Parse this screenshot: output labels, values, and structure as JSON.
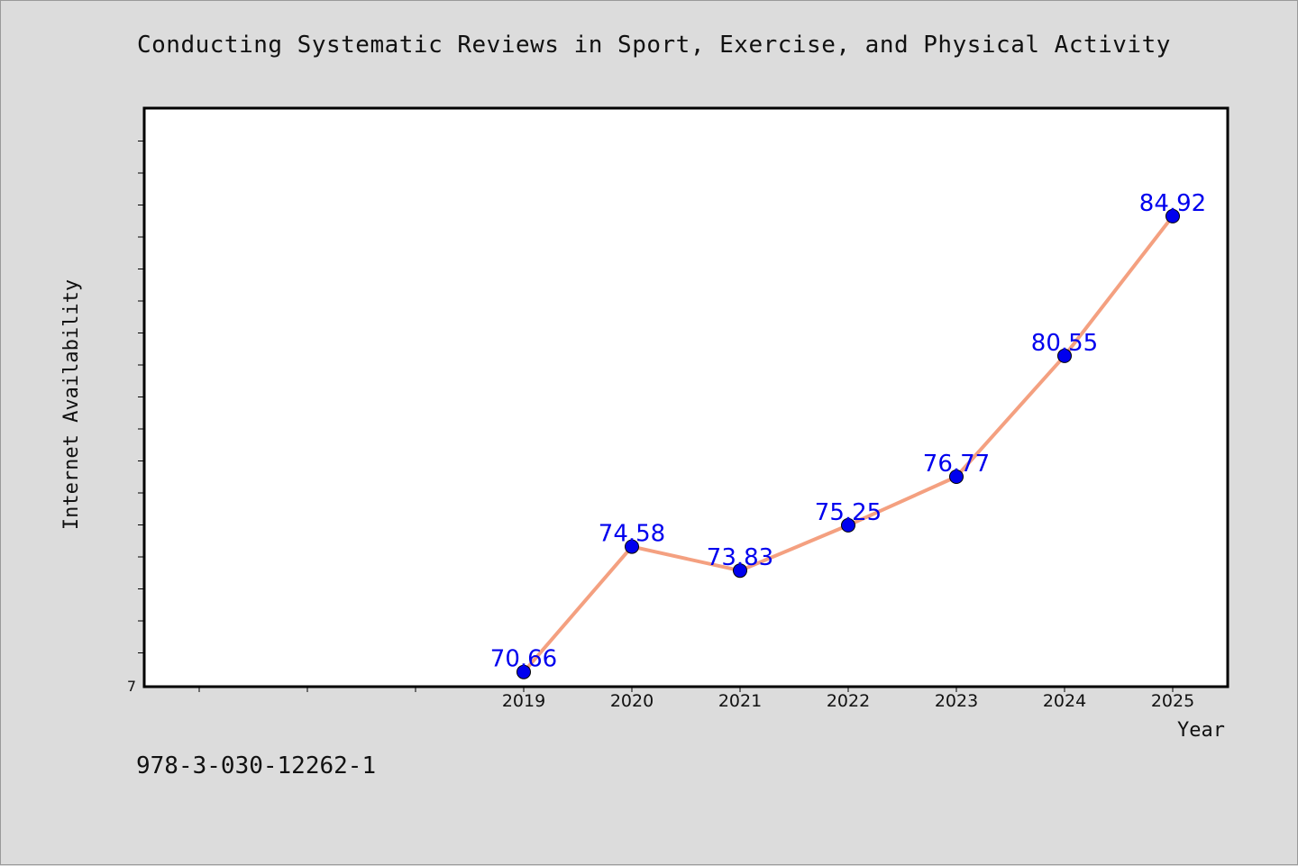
{
  "header": {
    "title": "Conducting Systematic Reviews in Sport, Exercise, and Physical Activity"
  },
  "footer": {
    "code": "978-3-030-12262-1"
  },
  "chart_data": {
    "type": "line",
    "title": "Conducting Systematic Reviews in Sport, Exercise, and Physical Activity",
    "xlabel": "Year",
    "ylabel": "Internet Availability",
    "x": [
      "2019",
      "2020",
      "2021",
      "2022",
      "2023",
      "2024",
      "2025"
    ],
    "series": [
      {
        "values": [
          70.66,
          74.58,
          73.83,
          75.25,
          76.77,
          80.55,
          84.92
        ],
        "labels": [
          "70.66",
          "74.58",
          "73.83",
          "75.25",
          "76.77",
          "80.55",
          "84.92"
        ],
        "line_color": "#f4a080",
        "marker_color": "#0000ee"
      }
    ],
    "x_visible_ticks": [
      "2019",
      "2020",
      "2021",
      "2022",
      "2023",
      "2024",
      "2025"
    ],
    "y_tick_label": "7",
    "ylim": [
      70.2,
      88.3
    ],
    "grid": false,
    "legend": "none"
  }
}
